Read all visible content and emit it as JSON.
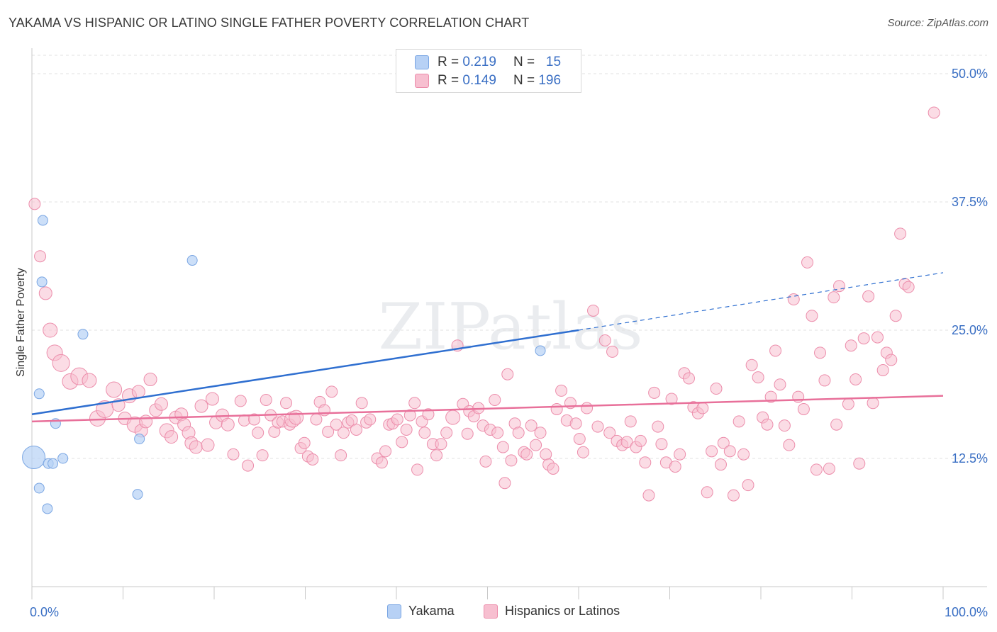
{
  "title": "YAKAMA VS HISPANIC OR LATINO SINGLE FATHER POVERTY CORRELATION CHART",
  "source": "Source: ZipAtlas.com",
  "watermark": "ZIPatlas",
  "legend": {
    "rows": [
      {
        "r_label": "R = ",
        "r_value": "0.219",
        "n_label": "N = ",
        "n_value": "15"
      },
      {
        "r_label": "R = ",
        "r_value": "0.149",
        "n_label": "N = ",
        "n_value": "196"
      }
    ]
  },
  "bottom_legend": {
    "yakama": "Yakama",
    "hispanic": "Hispanics or Latinos"
  },
  "colors": {
    "yakama_fill": "#b7d1f5",
    "yakama_stroke": "#7aa6e3",
    "yakama_line": "#2f6fd0",
    "hisp_fill": "#f7bfd0",
    "hisp_stroke": "#ec8dab",
    "hisp_line": "#e8709a",
    "axis_label": "#3a6fc4",
    "grid": "#e2e2e2"
  },
  "chart_data": {
    "type": "scatter",
    "title": "YAKAMA VS HISPANIC OR LATINO SINGLE FATHER POVERTY CORRELATION CHART",
    "xlabel": "",
    "ylabel": "Single Father Poverty",
    "xlim": [
      0,
      100
    ],
    "ylim": [
      0,
      52
    ],
    "x_tick_labels": [
      "0.0%",
      "100.0%"
    ],
    "y_ticks": [
      12.5,
      25.0,
      37.5,
      50.0
    ],
    "y_tick_labels": [
      "12.5%",
      "25.0%",
      "37.5%",
      "50.0%"
    ],
    "grid": true,
    "legend_position": "top-center",
    "series": [
      {
        "name": "Yakama",
        "points": [
          [
            0.2,
            12.6,
            16
          ],
          [
            0.8,
            9.6,
            7
          ],
          [
            0.8,
            18.8,
            7
          ],
          [
            1.2,
            35.7,
            7
          ],
          [
            1.1,
            29.7,
            7
          ],
          [
            1.7,
            7.6,
            7
          ],
          [
            1.8,
            12.0,
            7
          ],
          [
            2.3,
            12.0,
            7
          ],
          [
            2.6,
            15.9,
            7
          ],
          [
            3.4,
            12.5,
            7
          ],
          [
            5.6,
            24.6,
            7
          ],
          [
            11.8,
            14.4,
            7
          ],
          [
            11.6,
            9.0,
            7
          ],
          [
            17.6,
            31.8,
            7
          ],
          [
            55.8,
            23.0,
            7
          ]
        ],
        "trend": {
          "x": [
            0,
            60
          ],
          "y": [
            16.8,
            25.0
          ],
          "dashed_to": [
            100,
            30.6
          ]
        }
      },
      {
        "name": "Hispanics or Latinos",
        "points": [
          [
            0.3,
            37.3,
            8
          ],
          [
            0.9,
            32.2,
            8
          ],
          [
            1.5,
            28.6,
            9
          ],
          [
            2.0,
            25.0,
            10
          ],
          [
            2.5,
            22.8,
            11
          ],
          [
            3.2,
            21.8,
            12
          ],
          [
            4.2,
            20.0,
            11
          ],
          [
            5.2,
            20.5,
            12
          ],
          [
            6.3,
            20.1,
            10
          ],
          [
            7.2,
            16.4,
            11
          ],
          [
            8.0,
            17.3,
            12
          ],
          [
            9.0,
            19.2,
            11
          ],
          [
            9.5,
            17.7,
            9
          ],
          [
            10.2,
            16.4,
            9
          ],
          [
            10.7,
            18.6,
            10
          ],
          [
            11.3,
            15.8,
            11
          ],
          [
            11.7,
            19.0,
            9
          ],
          [
            12.0,
            15.2,
            9
          ],
          [
            12.5,
            16.1,
            9
          ],
          [
            13.0,
            20.2,
            9
          ],
          [
            13.6,
            17.2,
            9
          ],
          [
            14.2,
            17.8,
            9
          ],
          [
            14.8,
            15.2,
            10
          ],
          [
            15.3,
            14.6,
            9
          ],
          [
            15.8,
            16.5,
            9
          ],
          [
            16.4,
            16.8,
            9
          ],
          [
            16.7,
            15.8,
            9
          ],
          [
            17.2,
            15.0,
            9
          ],
          [
            17.5,
            14.0,
            9
          ],
          [
            18.0,
            13.6,
            9
          ],
          [
            18.6,
            17.6,
            9
          ],
          [
            19.3,
            13.8,
            9
          ],
          [
            19.8,
            18.3,
            9
          ],
          [
            20.2,
            16.0,
            9
          ],
          [
            20.9,
            16.7,
            9
          ],
          [
            21.5,
            15.8,
            9
          ],
          [
            22.1,
            12.9,
            8
          ],
          [
            22.9,
            18.1,
            8
          ],
          [
            23.3,
            16.2,
            8
          ],
          [
            23.7,
            11.8,
            8
          ],
          [
            24.4,
            16.3,
            8
          ],
          [
            24.8,
            15.0,
            8
          ],
          [
            25.3,
            12.8,
            8
          ],
          [
            25.7,
            18.2,
            8
          ],
          [
            26.2,
            16.7,
            8
          ],
          [
            26.6,
            15.1,
            8
          ],
          [
            27.0,
            16.0,
            8
          ],
          [
            27.5,
            16.1,
            8
          ],
          [
            27.9,
            17.9,
            8
          ],
          [
            28.3,
            15.8,
            8
          ],
          [
            28.6,
            16.3,
            11
          ],
          [
            29.0,
            16.5,
            10
          ],
          [
            29.5,
            13.5,
            8
          ],
          [
            29.9,
            14.0,
            8
          ],
          [
            30.3,
            12.7,
            8
          ],
          [
            30.8,
            12.4,
            8
          ],
          [
            31.2,
            16.3,
            8
          ],
          [
            31.6,
            18.0,
            8
          ],
          [
            32.1,
            17.2,
            8
          ],
          [
            32.5,
            15.1,
            8
          ],
          [
            32.9,
            19.0,
            8
          ],
          [
            33.4,
            15.8,
            8
          ],
          [
            33.9,
            12.8,
            8
          ],
          [
            34.2,
            15.0,
            8
          ],
          [
            34.7,
            16.0,
            8
          ],
          [
            35.1,
            16.2,
            8
          ],
          [
            35.6,
            15.3,
            8
          ],
          [
            36.2,
            17.9,
            8
          ],
          [
            36.7,
            16.0,
            8
          ],
          [
            37.1,
            16.3,
            8
          ],
          [
            37.9,
            12.5,
            8
          ],
          [
            38.4,
            12.1,
            8
          ],
          [
            38.8,
            13.2,
            8
          ],
          [
            39.2,
            15.8,
            8
          ],
          [
            39.6,
            15.9,
            8
          ],
          [
            40.1,
            16.3,
            8
          ],
          [
            40.6,
            14.1,
            8
          ],
          [
            41.1,
            15.3,
            8
          ],
          [
            41.5,
            16.7,
            8
          ],
          [
            42.0,
            17.9,
            8
          ],
          [
            42.3,
            11.4,
            8
          ],
          [
            42.8,
            16.1,
            8
          ],
          [
            43.1,
            15.0,
            8
          ],
          [
            43.5,
            16.8,
            8
          ],
          [
            44.0,
            13.9,
            8
          ],
          [
            44.4,
            12.8,
            8
          ],
          [
            44.9,
            13.9,
            8
          ],
          [
            45.5,
            15.0,
            8
          ],
          [
            46.2,
            16.5,
            10
          ],
          [
            46.7,
            23.5,
            8
          ],
          [
            47.3,
            17.8,
            8
          ],
          [
            47.8,
            14.9,
            8
          ],
          [
            48.0,
            17.1,
            8
          ],
          [
            48.5,
            16.6,
            8
          ],
          [
            49.0,
            17.4,
            8
          ],
          [
            49.5,
            15.7,
            8
          ],
          [
            49.8,
            12.2,
            8
          ],
          [
            50.3,
            15.3,
            8
          ],
          [
            50.8,
            18.2,
            8
          ],
          [
            51.1,
            15.0,
            8
          ],
          [
            51.7,
            13.6,
            8
          ],
          [
            51.9,
            10.1,
            8
          ],
          [
            52.2,
            20.7,
            8
          ],
          [
            52.6,
            12.3,
            8
          ],
          [
            53.0,
            15.9,
            8
          ],
          [
            53.4,
            15.0,
            8
          ],
          [
            54.0,
            13.1,
            8
          ],
          [
            54.3,
            12.9,
            8
          ],
          [
            54.8,
            15.7,
            8
          ],
          [
            55.3,
            13.8,
            8
          ],
          [
            55.8,
            15.0,
            8
          ],
          [
            56.4,
            12.9,
            8
          ],
          [
            56.7,
            11.9,
            8
          ],
          [
            57.2,
            11.5,
            8
          ],
          [
            57.6,
            17.3,
            8
          ],
          [
            58.1,
            19.1,
            8
          ],
          [
            58.7,
            16.2,
            8
          ],
          [
            59.1,
            17.9,
            8
          ],
          [
            59.7,
            15.9,
            8
          ],
          [
            60.1,
            14.4,
            8
          ],
          [
            60.5,
            13.1,
            8
          ],
          [
            60.9,
            17.4,
            8
          ],
          [
            61.6,
            26.9,
            8
          ],
          [
            62.1,
            15.6,
            8
          ],
          [
            62.9,
            24.0,
            8
          ],
          [
            63.4,
            15.0,
            8
          ],
          [
            63.7,
            22.9,
            8
          ],
          [
            64.2,
            14.2,
            8
          ],
          [
            64.8,
            13.8,
            8
          ],
          [
            65.3,
            14.1,
            8
          ],
          [
            65.7,
            16.1,
            8
          ],
          [
            66.3,
            13.6,
            8
          ],
          [
            66.8,
            14.2,
            8
          ],
          [
            67.3,
            12.1,
            8
          ],
          [
            67.7,
            8.9,
            8
          ],
          [
            68.3,
            18.9,
            8
          ],
          [
            68.7,
            15.6,
            8
          ],
          [
            69.1,
            13.9,
            8
          ],
          [
            69.6,
            12.1,
            8
          ],
          [
            70.2,
            18.3,
            8
          ],
          [
            70.6,
            11.7,
            8
          ],
          [
            71.1,
            12.9,
            8
          ],
          [
            71.6,
            20.8,
            8
          ],
          [
            72.1,
            20.3,
            8
          ],
          [
            72.6,
            17.5,
            8
          ],
          [
            73.1,
            16.9,
            8
          ],
          [
            73.6,
            17.4,
            8
          ],
          [
            74.1,
            9.2,
            8
          ],
          [
            74.6,
            13.2,
            8
          ],
          [
            75.1,
            19.3,
            8
          ],
          [
            75.6,
            11.9,
            8
          ],
          [
            75.9,
            14.0,
            8
          ],
          [
            76.6,
            13.2,
            8
          ],
          [
            77.0,
            8.9,
            8
          ],
          [
            77.6,
            16.1,
            8
          ],
          [
            78.1,
            12.9,
            8
          ],
          [
            78.6,
            9.9,
            8
          ],
          [
            79.0,
            21.6,
            8
          ],
          [
            79.7,
            20.4,
            8
          ],
          [
            80.2,
            16.5,
            8
          ],
          [
            80.7,
            15.8,
            8
          ],
          [
            81.1,
            18.5,
            8
          ],
          [
            81.6,
            23.0,
            8
          ],
          [
            82.1,
            19.7,
            8
          ],
          [
            82.6,
            15.7,
            8
          ],
          [
            83.1,
            13.8,
            8
          ],
          [
            83.6,
            28.0,
            8
          ],
          [
            84.1,
            18.5,
            8
          ],
          [
            84.7,
            17.3,
            8
          ],
          [
            85.1,
            31.6,
            8
          ],
          [
            85.6,
            26.4,
            8
          ],
          [
            86.1,
            11.4,
            8
          ],
          [
            86.5,
            22.8,
            8
          ],
          [
            87.0,
            20.1,
            8
          ],
          [
            87.5,
            11.5,
            8
          ],
          [
            88.0,
            28.2,
            8
          ],
          [
            88.3,
            15.8,
            8
          ],
          [
            88.6,
            29.3,
            8
          ],
          [
            89.6,
            17.8,
            8
          ],
          [
            89.9,
            23.5,
            8
          ],
          [
            90.4,
            20.2,
            8
          ],
          [
            90.8,
            12.0,
            8
          ],
          [
            91.3,
            24.2,
            8
          ],
          [
            91.8,
            28.3,
            8
          ],
          [
            92.3,
            17.9,
            8
          ],
          [
            92.8,
            24.3,
            8
          ],
          [
            93.4,
            21.1,
            8
          ],
          [
            93.8,
            22.8,
            8
          ],
          [
            94.3,
            22.1,
            8
          ],
          [
            94.8,
            26.4,
            8
          ],
          [
            95.3,
            34.4,
            8
          ],
          [
            95.8,
            29.5,
            8
          ],
          [
            96.2,
            29.2,
            8
          ],
          [
            99.0,
            46.2,
            8
          ]
        ],
        "trend": {
          "x": [
            0,
            100
          ],
          "y": [
            16.1,
            18.6
          ]
        }
      }
    ]
  }
}
